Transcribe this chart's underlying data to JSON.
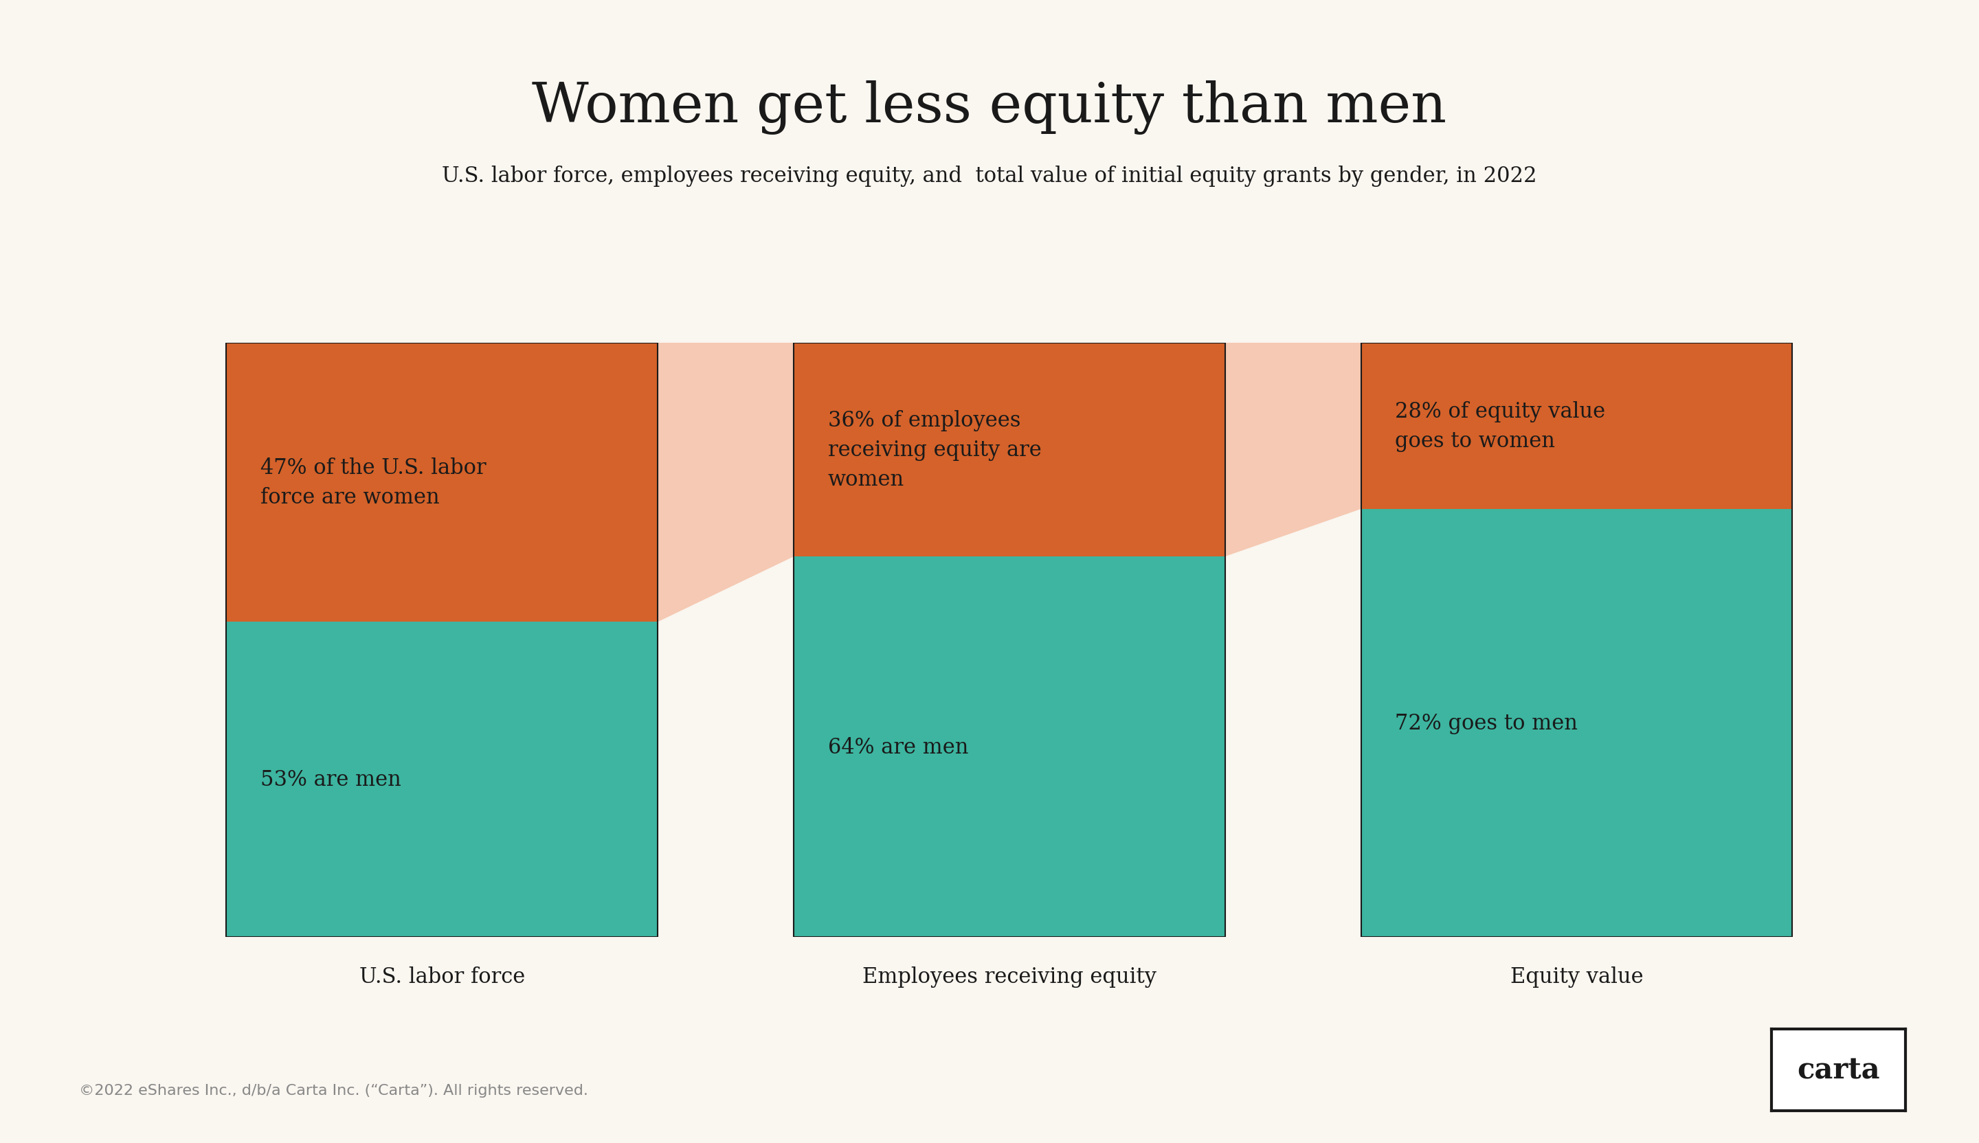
{
  "title": "Women get less equity than men",
  "subtitle": "U.S. labor force, employees receiving equity, and  total value of initial equity grants by gender, in 2022",
  "background_color": "#FAF6F0",
  "orange_color": "#D4622A",
  "teal_color": "#3DB5A0",
  "connector_color": "#F5C9B3",
  "text_color": "#1A1A1A",
  "label_color": "#1A1A1A",
  "bars": [
    {
      "women_pct": 47,
      "men_pct": 53,
      "women_label": "47% of the U.S. labor\nforce are women",
      "men_label": "53% are men",
      "xlabel": "U.S. labor force"
    },
    {
      "women_pct": 36,
      "men_pct": 64,
      "women_label": "36% of employees\nreceiving equity are\nwomen",
      "men_label": "64% are men",
      "xlabel": "Employees receiving equity"
    },
    {
      "women_pct": 28,
      "men_pct": 72,
      "women_label": "28% of equity value\ngoes to women",
      "men_label": "72% goes to men",
      "xlabel": "Equity value"
    }
  ],
  "footer": "©2022 eShares Inc., d/b/a Carta Inc. (“Carta”). All rights reserved.",
  "carta_logo": "carta",
  "title_fontsize": 58,
  "subtitle_fontsize": 22,
  "label_fontsize": 22,
  "xlabel_fontsize": 22,
  "footer_fontsize": 16,
  "logo_fontsize": 30
}
